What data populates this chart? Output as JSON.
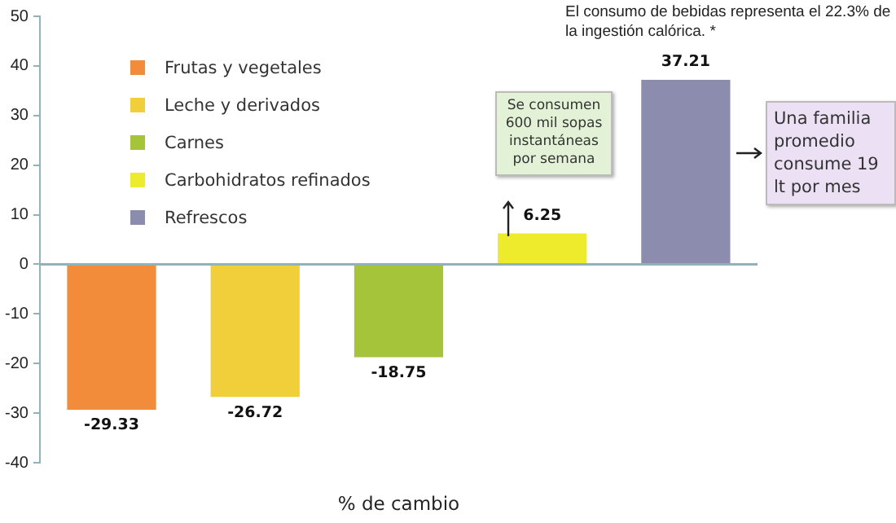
{
  "chart_data": {
    "type": "bar",
    "xlabel": "% de cambio",
    "categories": [
      null,
      null,
      null,
      null,
      null
    ],
    "series": [
      {
        "name": "Frutas y vegetales",
        "color": "#f28c3a",
        "values": [
          -29.33,
          null,
          null,
          null,
          null
        ]
      },
      {
        "name": "Leche y derivados",
        "color": "#f0cf3a",
        "values": [
          null,
          -26.72,
          null,
          null,
          null
        ]
      },
      {
        "name": "Carnes",
        "color": "#a6c43a",
        "values": [
          null,
          null,
          -18.75,
          null,
          null
        ]
      },
      {
        "name": "Carbohidratos refinados",
        "color": "#eeea2c",
        "values": [
          null,
          null,
          null,
          6.25,
          null
        ]
      },
      {
        "name": "Refrescos",
        "color": "#8c8cae",
        "values": [
          null,
          null,
          null,
          null,
          37.21
        ]
      }
    ],
    "ylim": [
      -40,
      50
    ],
    "yticks": [
      -40,
      -30,
      -20,
      -10,
      0,
      10,
      20,
      30,
      40,
      50
    ],
    "data_labels": true,
    "ref_lines": [
      {
        "axis": "y",
        "value": 0,
        "color": "#8fb3b8"
      }
    ],
    "legend": "top left",
    "annotations": [
      "El consumo de bebidas representa el 22.3% de la ingestión calórica. *",
      "Se consumen 600 mil sopas instantáneas por semana",
      "Una familia promedio consume 19 lt por mes"
    ]
  }
}
